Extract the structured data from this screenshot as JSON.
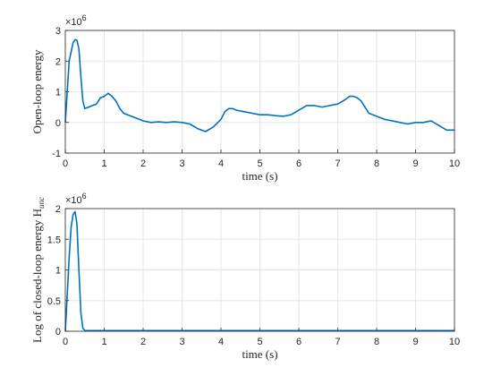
{
  "chart_data": [
    {
      "type": "line",
      "xlabel": "time (s)",
      "ylabel": "Open-loop energy",
      "y_exponent_label": "×10",
      "y_exponent_power": "6",
      "xlim": [
        0,
        10
      ],
      "ylim": [
        -1,
        3
      ],
      "xticks": [
        "0",
        "1",
        "2",
        "3",
        "4",
        "5",
        "6",
        "7",
        "8",
        "9",
        "10"
      ],
      "yticks": [
        "-1",
        "0",
        "1",
        "2",
        "3"
      ],
      "grid": true,
      "color": "#0072bd",
      "x": [
        0,
        0.1,
        0.2,
        0.25,
        0.3,
        0.35,
        0.4,
        0.45,
        0.5,
        0.6,
        0.7,
        0.8,
        0.9,
        1.0,
        1.1,
        1.2,
        1.3,
        1.4,
        1.5,
        1.6,
        1.7,
        1.8,
        1.9,
        2.0,
        2.2,
        2.4,
        2.6,
        2.8,
        3.0,
        3.2,
        3.4,
        3.6,
        3.8,
        4.0,
        4.1,
        4.2,
        4.3,
        4.4,
        4.6,
        4.8,
        5.0,
        5.2,
        5.4,
        5.6,
        5.8,
        6.0,
        6.2,
        6.4,
        6.6,
        6.8,
        7.0,
        7.2,
        7.3,
        7.4,
        7.5,
        7.6,
        7.7,
        7.8,
        8.0,
        8.2,
        8.4,
        8.6,
        8.8,
        9.0,
        9.2,
        9.4,
        9.6,
        9.8,
        10.0
      ],
      "y": [
        0,
        2.0,
        2.6,
        2.7,
        2.68,
        2.4,
        1.5,
        0.7,
        0.45,
        0.5,
        0.55,
        0.6,
        0.8,
        0.85,
        0.95,
        0.85,
        0.7,
        0.45,
        0.3,
        0.25,
        0.2,
        0.15,
        0.1,
        0.05,
        0.0,
        0.02,
        0.0,
        0.02,
        0.0,
        -0.05,
        -0.2,
        -0.3,
        -0.15,
        0.1,
        0.35,
        0.45,
        0.45,
        0.4,
        0.35,
        0.3,
        0.25,
        0.25,
        0.22,
        0.2,
        0.25,
        0.4,
        0.55,
        0.55,
        0.5,
        0.55,
        0.6,
        0.75,
        0.85,
        0.85,
        0.8,
        0.7,
        0.5,
        0.3,
        0.2,
        0.1,
        0.05,
        0.0,
        -0.05,
        0.0,
        0.0,
        0.05,
        -0.1,
        -0.25,
        -0.25
      ]
    },
    {
      "type": "line",
      "xlabel": "time (s)",
      "ylabel": "Log of closed-loop energy H",
      "ylabel_subscript": "unc",
      "y_exponent_label": "×10",
      "y_exponent_power": "6",
      "xlim": [
        0,
        10
      ],
      "ylim": [
        0,
        2
      ],
      "xticks": [
        "0",
        "1",
        "2",
        "3",
        "4",
        "5",
        "6",
        "7",
        "8",
        "9",
        "10"
      ],
      "yticks": [
        "0",
        "0.5",
        "1",
        "1.5",
        "2"
      ],
      "grid": true,
      "color": "#0072bd",
      "x": [
        0,
        0.05,
        0.1,
        0.15,
        0.2,
        0.25,
        0.3,
        0.35,
        0.4,
        0.45,
        0.5,
        0.6,
        0.8,
        1,
        2,
        3,
        4,
        5,
        6,
        7,
        8,
        9,
        10
      ],
      "y": [
        0,
        0.6,
        1.2,
        1.7,
        1.9,
        1.95,
        1.75,
        1.0,
        0.3,
        0.05,
        0.01,
        0.01,
        0.01,
        0.01,
        0.01,
        0.01,
        0.01,
        0.01,
        0.01,
        0.01,
        0.01,
        0.01,
        0.01
      ]
    }
  ]
}
